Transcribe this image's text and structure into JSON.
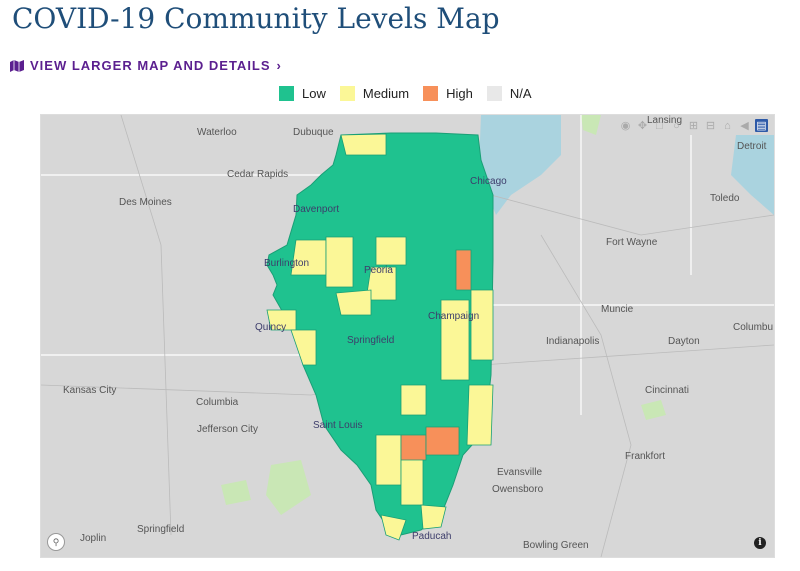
{
  "page": {
    "title": "COVID-19 Community Levels Map"
  },
  "link": {
    "label": "VIEW LARGER MAP AND DETAILS",
    "chevron": "›",
    "icon": "map-icon"
  },
  "legend": [
    {
      "label": "Low",
      "color": "#1fc28f"
    },
    {
      "label": "Medium",
      "color": "#fbf797"
    },
    {
      "label": "High",
      "color": "#f7905a"
    },
    {
      "label": "N/A",
      "color": "#e8e8e8"
    }
  ],
  "colors": {
    "low": "#1fc28f",
    "medium": "#fbf797",
    "high": "#f7905a",
    "land": "#d7d7d7",
    "water": "#aad3df",
    "park": "#c9e7b5"
  },
  "cities": {
    "waterloo": "Waterloo",
    "dubuque": "Dubuque",
    "lansing": "Lansing",
    "detroit": "Detroit",
    "cedar_rapids": "Cedar Rapids",
    "chicago": "Chicago",
    "des_moines": "Des Moines",
    "davenport": "Davenport",
    "toledo": "Toledo",
    "fort_wayne": "Fort Wayne",
    "burlington": "Burlington",
    "peoria": "Peoria",
    "muncie": "Muncie",
    "champaign": "Champaign",
    "quincy": "Quincy",
    "columbus": "Columbu",
    "indianapolis": "Indianapolis",
    "dayton": "Dayton",
    "springfield_il": "Springfield",
    "kansas_city": "Kansas City",
    "cincinnati": "Cincinnati",
    "columbia": "Columbia",
    "jefferson_city": "Jefferson City",
    "saint_louis": "Saint Louis",
    "frankfort": "Frankfort",
    "evansville": "Evansville",
    "owensboro": "Owensboro",
    "joplin": "Joplin",
    "springfield_mo": "Springfield",
    "paducah": "Paducah",
    "bowling_green": "Bowling Green"
  },
  "toolbar": [
    "camera-icon",
    "pan-icon",
    "select-icon",
    "lasso-icon",
    "zoom-in-icon",
    "zoom-out-icon",
    "home-icon",
    "back-icon",
    "bar-chart-icon"
  ],
  "info": {
    "label": "i"
  }
}
